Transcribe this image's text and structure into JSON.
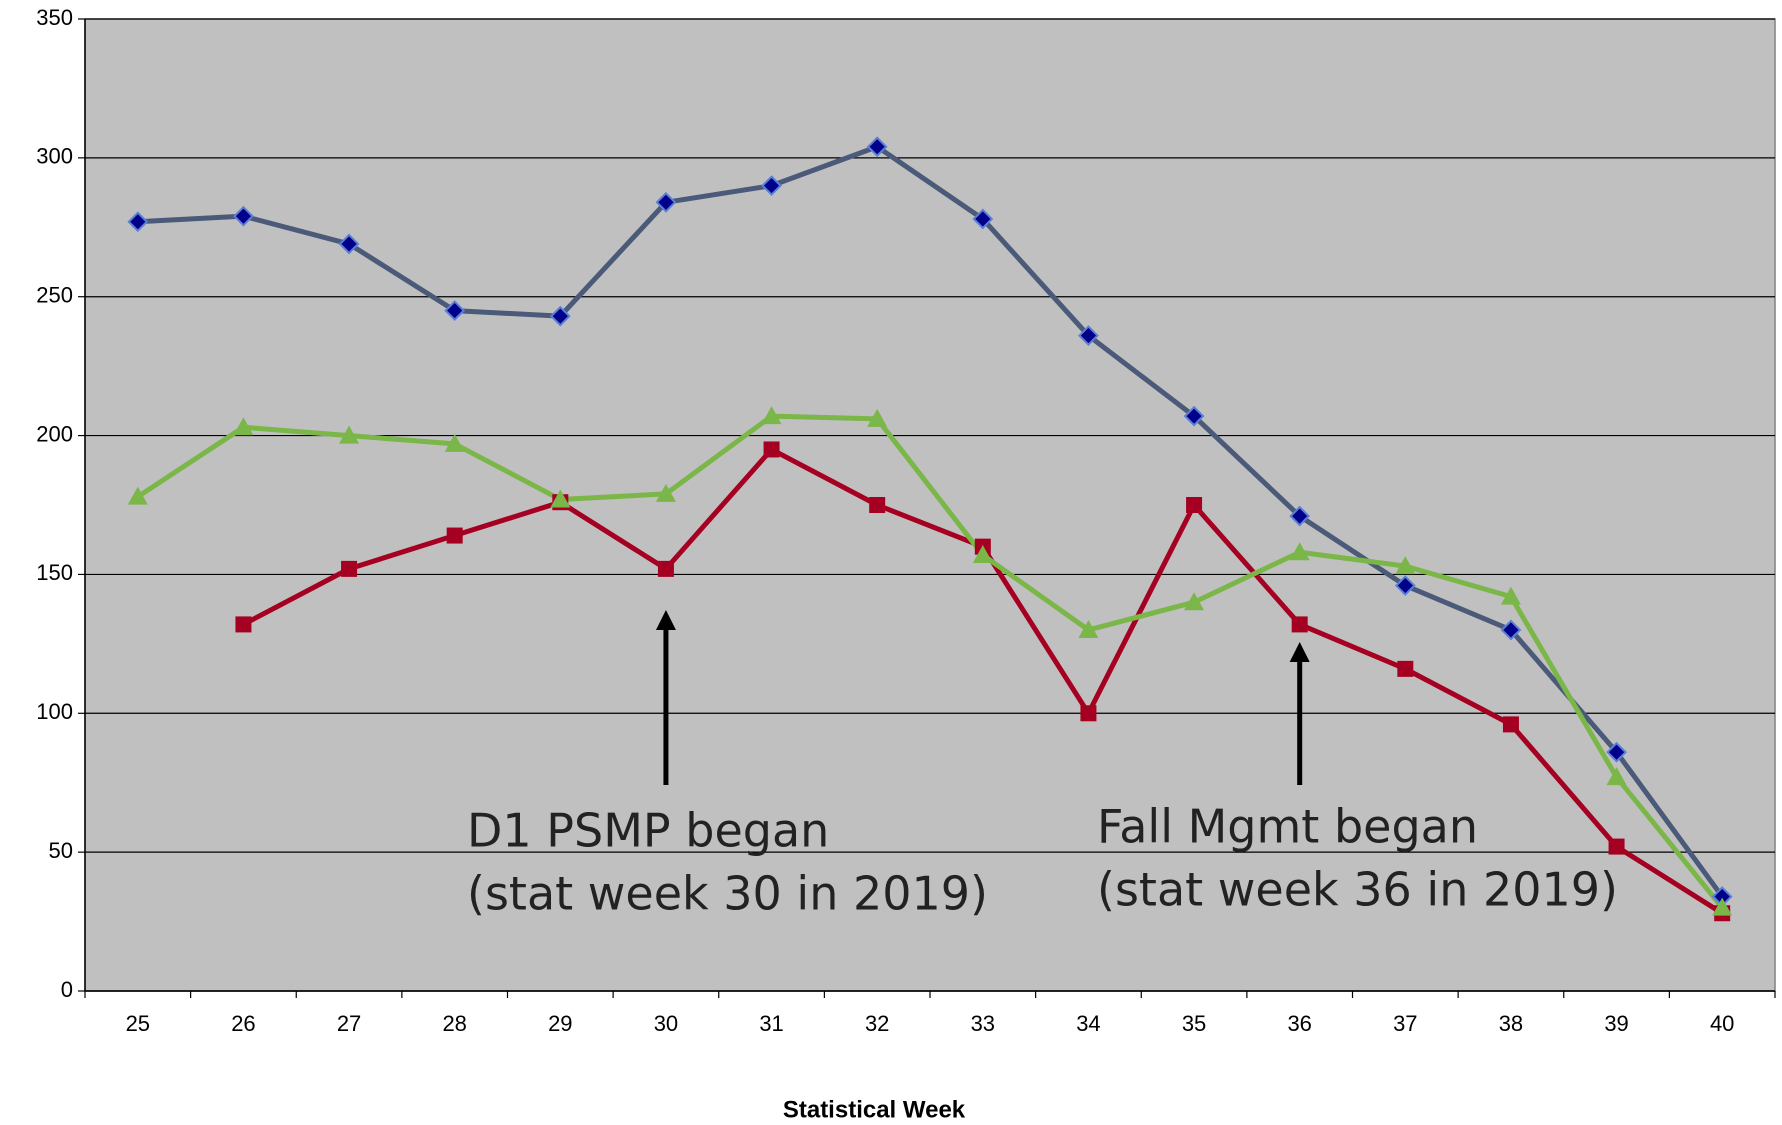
{
  "chart_data": {
    "type": "line",
    "x_label": "Statistical Week",
    "categories": [
      25,
      26,
      27,
      28,
      29,
      30,
      31,
      32,
      33,
      34,
      35,
      36,
      37,
      38,
      39,
      40
    ],
    "series": [
      {
        "color": "#4a5a78",
        "marker": "diamond",
        "marker_color": "#00008b",
        "values": [
          277,
          279,
          269,
          245,
          243,
          284,
          290,
          304,
          278,
          236,
          207,
          171,
          146,
          130,
          86,
          34
        ]
      },
      {
        "color": "#a50021",
        "marker": "square",
        "marker_color": "#a50021",
        "values": [
          null,
          132,
          152,
          164,
          176,
          152,
          195,
          175,
          160,
          100,
          175,
          132,
          116,
          96,
          52,
          28
        ]
      },
      {
        "color": "#7ab648",
        "marker": "triangle",
        "marker_color": "#7ab648",
        "values": [
          178,
          203,
          200,
          197,
          177,
          179,
          207,
          206,
          157,
          130,
          140,
          158,
          153,
          142,
          77,
          30
        ]
      }
    ],
    "ylim": [
      0,
      350
    ],
    "yticks": [
      0,
      50,
      100,
      150,
      200,
      250,
      300,
      350
    ],
    "grid": true,
    "background": "#c0c0c0",
    "annotations": [
      {
        "lines": [
          "D1 PSMP began",
          "(stat week 30 in 2019)"
        ]
      },
      {
        "lines": [
          "Fall Mgmt began",
          "(stat week 36 in 2019)"
        ]
      }
    ]
  }
}
